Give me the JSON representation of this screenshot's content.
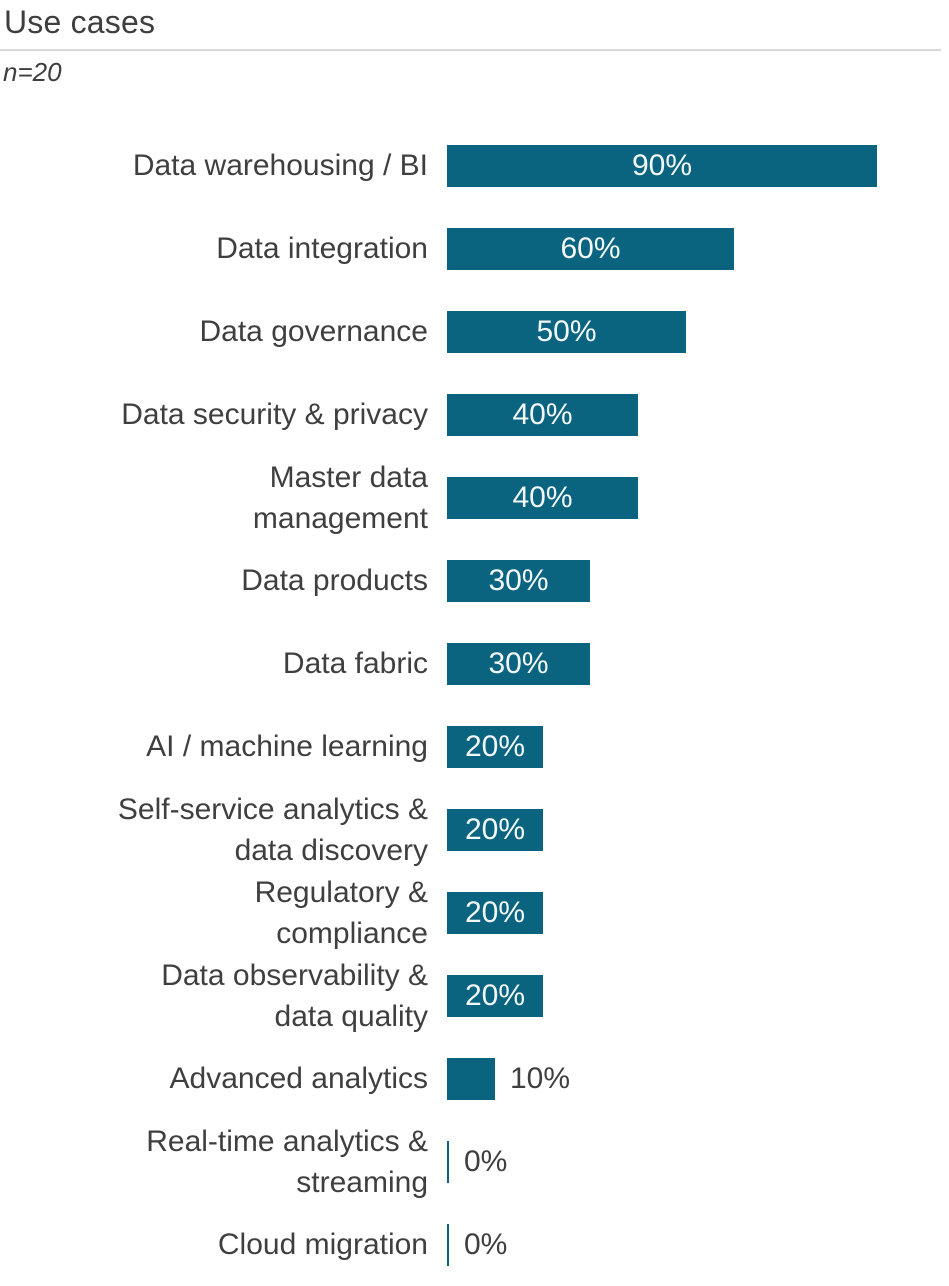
{
  "header": {
    "title": "Use cases",
    "sample_size": "n=20"
  },
  "colors": {
    "bar": "#0a6480",
    "category_text": "#3f3f3f",
    "inside_value_text": "#f3f7f8",
    "outside_value_text": "#3f3f3f",
    "divider": "#d8d8d8"
  },
  "chart_data": {
    "type": "bar",
    "orientation": "horizontal",
    "title": "Use cases",
    "subtitle": "n=20",
    "unit": "%",
    "xlim": [
      0,
      100
    ],
    "grid": false,
    "legend": false,
    "inside_label_min": 20,
    "categories": [
      "Data warehousing / BI",
      "Data integration",
      "Data governance",
      "Data security & privacy",
      "Master data\nmanagement",
      "Data products",
      "Data fabric",
      "AI / machine learning",
      "Self-service analytics &\ndata discovery",
      "Regulatory &\ncompliance",
      "Data observability &\ndata quality",
      "Advanced analytics",
      "Real-time analytics &\nstreaming",
      "Cloud migration"
    ],
    "values": [
      90,
      60,
      50,
      40,
      40,
      30,
      30,
      20,
      20,
      20,
      20,
      10,
      0,
      0
    ],
    "value_labels": [
      "90%",
      "60%",
      "50%",
      "40%",
      "40%",
      "30%",
      "30%",
      "20%",
      "20%",
      "20%",
      "20%",
      "10%",
      "0%",
      "0%"
    ]
  }
}
